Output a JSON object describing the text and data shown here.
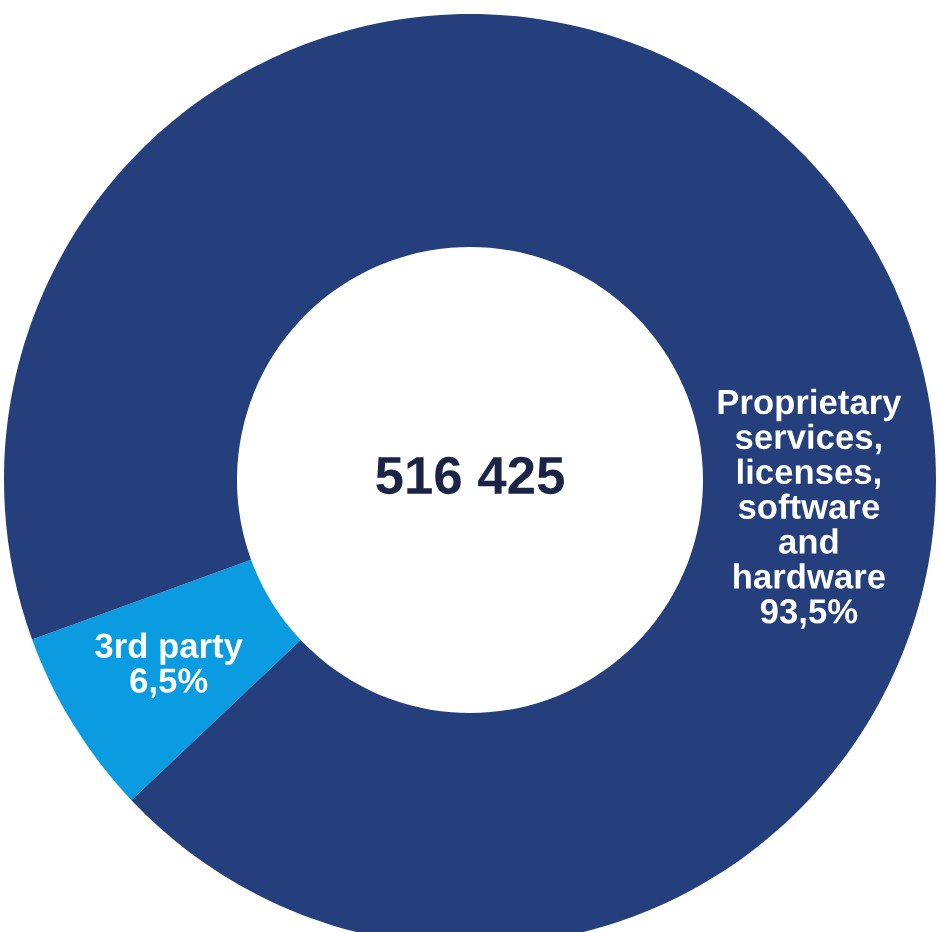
{
  "chart_data": {
    "type": "donut",
    "categories": [
      "3rd party",
      "Proprietary\nservices,\nlicenses,\nsoftware\nand\nhardware"
    ],
    "values": [
      6.5,
      93.5
    ],
    "colors": [
      "#0a9be0",
      "#253f7c"
    ],
    "value_labels": [
      "6,5%",
      "93,5%"
    ],
    "annotations": [
      "516 425"
    ]
  }
}
